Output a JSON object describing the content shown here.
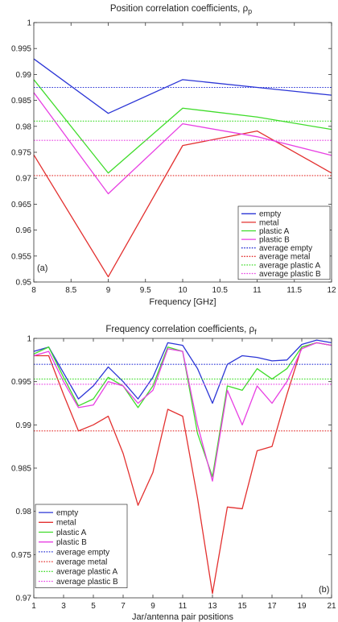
{
  "colors": {
    "empty": "#2b35d6",
    "metal": "#e3302f",
    "plastic_a": "#3fdc2a",
    "plastic_b": "#e83fe3"
  },
  "chart_data": [
    {
      "type": "line",
      "title": "Position correlation coefficients, ρ",
      "title_sub": "p",
      "xlabel": "Frequency [GHz]",
      "ylabel": "",
      "panel_label": "(a)",
      "xlim": [
        8,
        12
      ],
      "ylim": [
        0.95,
        1
      ],
      "xticks": [
        8,
        8.5,
        9,
        9.5,
        10,
        10.5,
        11,
        11.5,
        12
      ],
      "xtick_labels": [
        "8",
        "8.5",
        "9",
        "9.5",
        "10",
        "10.5",
        "11",
        "11.5",
        "12"
      ],
      "yticks": [
        0.95,
        0.955,
        0.96,
        0.965,
        0.97,
        0.975,
        0.98,
        0.985,
        0.99,
        0.995,
        1
      ],
      "ytick_labels": [
        "0.95",
        "0.955",
        "0.96",
        "0.965",
        "0.97",
        "0.975",
        "0.98",
        "0.985",
        "0.99",
        "0.995",
        "1"
      ],
      "legend_position": "lower-right",
      "x": [
        8,
        9,
        10,
        11,
        12
      ],
      "series": [
        {
          "name": "empty",
          "color_key": "empty",
          "style": "solid",
          "values": [
            0.993,
            0.9825,
            0.989,
            0.9875,
            0.986
          ]
        },
        {
          "name": "metal",
          "color_key": "metal",
          "style": "solid",
          "values": [
            0.9745,
            0.951,
            0.9763,
            0.9791,
            0.971
          ]
        },
        {
          "name": "plastic A",
          "color_key": "plastic_a",
          "style": "solid",
          "values": [
            0.989,
            0.971,
            0.9835,
            0.9818,
            0.9794
          ]
        },
        {
          "name": "plastic B",
          "color_key": "plastic_b",
          "style": "solid",
          "values": [
            0.9865,
            0.967,
            0.9805,
            0.978,
            0.9744
          ]
        },
        {
          "name": "average empty",
          "color_key": "empty",
          "style": "dotted",
          "values": [
            0.9875,
            0.9875,
            0.9875,
            0.9875,
            0.9875
          ]
        },
        {
          "name": "average metal",
          "color_key": "metal",
          "style": "dotted",
          "values": [
            0.9705,
            0.9705,
            0.9705,
            0.9705,
            0.9705
          ]
        },
        {
          "name": "average plastic A",
          "color_key": "plastic_a",
          "style": "dotted",
          "values": [
            0.981,
            0.981,
            0.981,
            0.981,
            0.981
          ]
        },
        {
          "name": "average plastic B",
          "color_key": "plastic_b",
          "style": "dotted",
          "values": [
            0.9773,
            0.9773,
            0.9773,
            0.9773,
            0.9773
          ]
        }
      ]
    },
    {
      "type": "line",
      "title": "Frequency correlation coefficients, ρ",
      "title_sub": "f",
      "xlabel": "Jar/antenna pair positions",
      "ylabel": "",
      "panel_label": "(b)",
      "xlim": [
        1,
        21
      ],
      "ylim": [
        0.97,
        1
      ],
      "xticks": [
        1,
        3,
        5,
        7,
        9,
        11,
        13,
        15,
        17,
        19,
        21
      ],
      "xtick_labels": [
        "1",
        "3",
        "5",
        "7",
        "9",
        "11",
        "13",
        "15",
        "17",
        "19",
        "21"
      ],
      "yticks": [
        0.97,
        0.975,
        0.98,
        0.985,
        0.99,
        0.995,
        1
      ],
      "ytick_labels": [
        "0.97",
        "0.975",
        "0.98",
        "0.985",
        "0.99",
        "0.995",
        "1"
      ],
      "legend_position": "lower-left",
      "x": [
        1,
        2,
        3,
        4,
        5,
        6,
        7,
        8,
        9,
        10,
        11,
        12,
        13,
        14,
        15,
        16,
        17,
        18,
        19,
        20,
        21
      ],
      "series": [
        {
          "name": "empty",
          "color_key": "empty",
          "style": "solid",
          "values": [
            0.9985,
            0.999,
            0.996,
            0.993,
            0.9945,
            0.9967,
            0.995,
            0.993,
            0.9955,
            0.9995,
            0.9992,
            0.9965,
            0.9925,
            0.997,
            0.998,
            0.9978,
            0.9974,
            0.9975,
            0.9993,
            0.9998,
            0.9995
          ]
        },
        {
          "name": "metal",
          "color_key": "metal",
          "style": "solid",
          "values": [
            0.998,
            0.998,
            0.9935,
            0.9893,
            0.99,
            0.991,
            0.9867,
            0.9807,
            0.9845,
            0.9918,
            0.991,
            0.9815,
            0.9705,
            0.9805,
            0.9803,
            0.987,
            0.9875,
            0.9935,
            0.999,
            0.9995,
            0.9992
          ]
        },
        {
          "name": "plastic A",
          "color_key": "plastic_a",
          "style": "solid",
          "values": [
            0.9982,
            0.999,
            0.9955,
            0.9922,
            0.993,
            0.9955,
            0.9945,
            0.992,
            0.9945,
            0.999,
            0.9985,
            0.989,
            0.984,
            0.9945,
            0.994,
            0.9965,
            0.9953,
            0.9965,
            0.999,
            0.9995,
            0.9992
          ]
        },
        {
          "name": "plastic B",
          "color_key": "plastic_b",
          "style": "solid",
          "values": [
            0.998,
            0.9985,
            0.995,
            0.992,
            0.9923,
            0.995,
            0.9945,
            0.9925,
            0.994,
            0.9988,
            0.9985,
            0.99,
            0.9835,
            0.994,
            0.99,
            0.9945,
            0.9925,
            0.995,
            0.9988,
            0.9995,
            0.9992
          ]
        },
        {
          "name": "average empty",
          "color_key": "empty",
          "style": "dotted",
          "values": [
            0.997,
            0.997,
            0.997,
            0.997,
            0.997,
            0.997,
            0.997,
            0.997,
            0.997,
            0.997,
            0.997,
            0.997,
            0.997,
            0.997,
            0.997,
            0.997,
            0.997,
            0.997,
            0.997,
            0.997,
            0.997
          ]
        },
        {
          "name": "average metal",
          "color_key": "metal",
          "style": "dotted",
          "values": [
            0.9893,
            0.9893,
            0.9893,
            0.9893,
            0.9893,
            0.9893,
            0.9893,
            0.9893,
            0.9893,
            0.9893,
            0.9893,
            0.9893,
            0.9893,
            0.9893,
            0.9893,
            0.9893,
            0.9893,
            0.9893,
            0.9893,
            0.9893,
            0.9893
          ]
        },
        {
          "name": "average plastic A",
          "color_key": "plastic_a",
          "style": "dotted",
          "values": [
            0.9953,
            0.9953,
            0.9953,
            0.9953,
            0.9953,
            0.9953,
            0.9953,
            0.9953,
            0.9953,
            0.9953,
            0.9953,
            0.9953,
            0.9953,
            0.9953,
            0.9953,
            0.9953,
            0.9953,
            0.9953,
            0.9953,
            0.9953,
            0.9953
          ]
        },
        {
          "name": "average plastic B",
          "color_key": "plastic_b",
          "style": "dotted",
          "values": [
            0.9947,
            0.9947,
            0.9947,
            0.9947,
            0.9947,
            0.9947,
            0.9947,
            0.9947,
            0.9947,
            0.9947,
            0.9947,
            0.9947,
            0.9947,
            0.9947,
            0.9947,
            0.9947,
            0.9947,
            0.9947,
            0.9947,
            0.9947,
            0.9947
          ]
        }
      ]
    }
  ]
}
